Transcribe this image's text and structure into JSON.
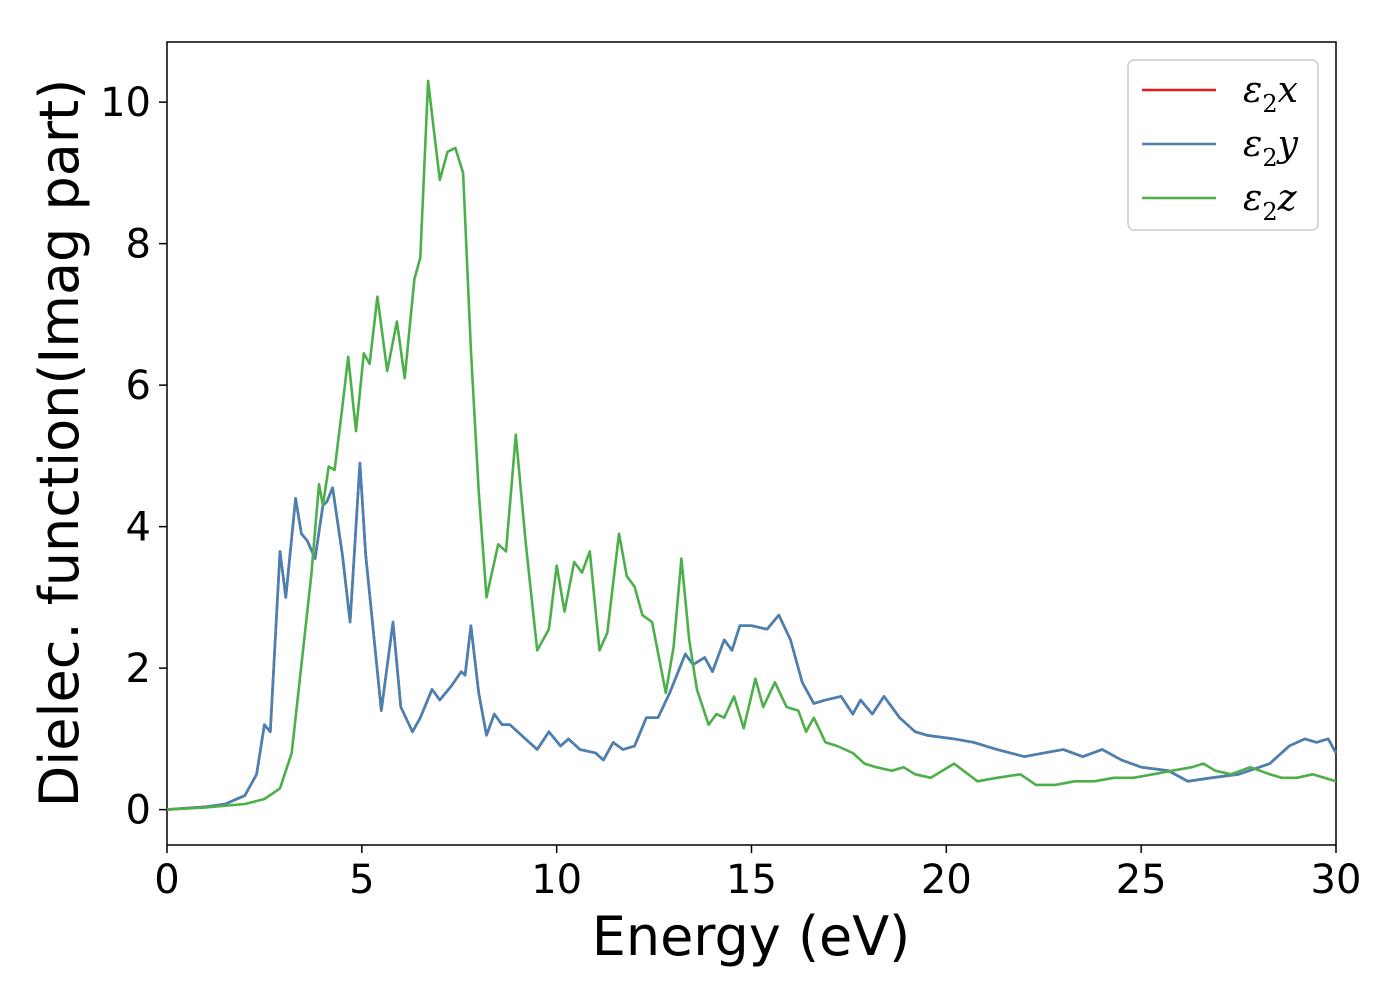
{
  "chart_data": {
    "type": "line",
    "title": "",
    "xlabel": "Energy (eV)",
    "ylabel": "Dielec. function(Imag part)",
    "xlim": [
      0,
      30
    ],
    "ylim": [
      -0.5,
      10.85
    ],
    "xticks": [
      0,
      5,
      10,
      15,
      20,
      25,
      30
    ],
    "yticks": [
      0,
      2,
      4,
      6,
      8,
      10
    ],
    "grid": false,
    "legend_position": "top-right",
    "series": [
      {
        "name": "ε₂x",
        "legend_main": "ε",
        "legend_sub": "2",
        "legend_suffix": "x",
        "color": "#e41a1c",
        "points": [
          [
            0,
            0
          ],
          [
            1,
            0.04
          ],
          [
            1.5,
            0.08
          ],
          [
            2,
            0.2
          ],
          [
            2.3,
            0.5
          ],
          [
            2.5,
            1.2
          ],
          [
            2.65,
            1.1
          ],
          [
            2.9,
            3.65
          ],
          [
            3.05,
            3.0
          ],
          [
            3.3,
            4.4
          ],
          [
            3.45,
            3.9
          ],
          [
            3.6,
            3.8
          ],
          [
            3.8,
            3.55
          ],
          [
            4.0,
            4.3
          ],
          [
            4.1,
            4.35
          ],
          [
            4.25,
            4.55
          ],
          [
            4.5,
            3.6
          ],
          [
            4.7,
            2.65
          ],
          [
            4.95,
            4.9
          ],
          [
            5.1,
            3.6
          ],
          [
            5.5,
            1.4
          ],
          [
            5.8,
            2.65
          ],
          [
            6.0,
            1.45
          ],
          [
            6.3,
            1.1
          ],
          [
            6.5,
            1.3
          ],
          [
            6.8,
            1.7
          ],
          [
            7.0,
            1.55
          ],
          [
            7.3,
            1.75
          ],
          [
            7.55,
            1.95
          ],
          [
            7.65,
            1.9
          ],
          [
            7.8,
            2.6
          ],
          [
            8.0,
            1.65
          ],
          [
            8.2,
            1.05
          ],
          [
            8.4,
            1.35
          ],
          [
            8.6,
            1.2
          ],
          [
            8.8,
            1.2
          ],
          [
            9.2,
            1.0
          ],
          [
            9.5,
            0.85
          ],
          [
            9.8,
            1.1
          ],
          [
            10.1,
            0.9
          ],
          [
            10.3,
            1.0
          ],
          [
            10.6,
            0.85
          ],
          [
            11.0,
            0.8
          ],
          [
            11.2,
            0.7
          ],
          [
            11.45,
            0.95
          ],
          [
            11.7,
            0.85
          ],
          [
            12.0,
            0.9
          ],
          [
            12.3,
            1.3
          ],
          [
            12.6,
            1.3
          ],
          [
            12.9,
            1.65
          ],
          [
            13.3,
            2.2
          ],
          [
            13.5,
            2.05
          ],
          [
            13.8,
            2.15
          ],
          [
            14.0,
            1.95
          ],
          [
            14.3,
            2.4
          ],
          [
            14.5,
            2.25
          ],
          [
            14.7,
            2.6
          ],
          [
            15.0,
            2.6
          ],
          [
            15.4,
            2.55
          ],
          [
            15.7,
            2.75
          ],
          [
            16.0,
            2.4
          ],
          [
            16.3,
            1.8
          ],
          [
            16.6,
            1.5
          ],
          [
            16.9,
            1.55
          ],
          [
            17.3,
            1.6
          ],
          [
            17.6,
            1.35
          ],
          [
            17.8,
            1.55
          ],
          [
            18.1,
            1.35
          ],
          [
            18.4,
            1.6
          ],
          [
            18.8,
            1.3
          ],
          [
            19.2,
            1.1
          ],
          [
            19.5,
            1.05
          ],
          [
            20.2,
            1.0
          ],
          [
            20.7,
            0.95
          ],
          [
            21.3,
            0.85
          ],
          [
            22.0,
            0.75
          ],
          [
            22.5,
            0.8
          ],
          [
            23.0,
            0.85
          ],
          [
            23.5,
            0.75
          ],
          [
            24.0,
            0.85
          ],
          [
            24.5,
            0.7
          ],
          [
            25.0,
            0.6
          ],
          [
            25.7,
            0.55
          ],
          [
            26.2,
            0.4
          ],
          [
            26.8,
            0.45
          ],
          [
            27.5,
            0.5
          ],
          [
            28.3,
            0.65
          ],
          [
            28.8,
            0.9
          ],
          [
            29.2,
            1.0
          ],
          [
            29.5,
            0.95
          ],
          [
            29.8,
            1.0
          ],
          [
            30.0,
            0.8
          ]
        ]
      },
      {
        "name": "ε₂y",
        "legend_main": "ε",
        "legend_sub": "2",
        "legend_suffix": "y",
        "color": "#4682b4",
        "points": [
          [
            0,
            0
          ],
          [
            1,
            0.04
          ],
          [
            1.5,
            0.08
          ],
          [
            2,
            0.2
          ],
          [
            2.3,
            0.5
          ],
          [
            2.5,
            1.2
          ],
          [
            2.65,
            1.1
          ],
          [
            2.9,
            3.65
          ],
          [
            3.05,
            3.0
          ],
          [
            3.3,
            4.4
          ],
          [
            3.45,
            3.9
          ],
          [
            3.6,
            3.8
          ],
          [
            3.8,
            3.55
          ],
          [
            4.0,
            4.3
          ],
          [
            4.1,
            4.35
          ],
          [
            4.25,
            4.55
          ],
          [
            4.5,
            3.6
          ],
          [
            4.7,
            2.65
          ],
          [
            4.95,
            4.9
          ],
          [
            5.1,
            3.6
          ],
          [
            5.5,
            1.4
          ],
          [
            5.8,
            2.65
          ],
          [
            6.0,
            1.45
          ],
          [
            6.3,
            1.1
          ],
          [
            6.5,
            1.3
          ],
          [
            6.8,
            1.7
          ],
          [
            7.0,
            1.55
          ],
          [
            7.3,
            1.75
          ],
          [
            7.55,
            1.95
          ],
          [
            7.65,
            1.9
          ],
          [
            7.8,
            2.6
          ],
          [
            8.0,
            1.65
          ],
          [
            8.2,
            1.05
          ],
          [
            8.4,
            1.35
          ],
          [
            8.6,
            1.2
          ],
          [
            8.8,
            1.2
          ],
          [
            9.2,
            1.0
          ],
          [
            9.5,
            0.85
          ],
          [
            9.8,
            1.1
          ],
          [
            10.1,
            0.9
          ],
          [
            10.3,
            1.0
          ],
          [
            10.6,
            0.85
          ],
          [
            11.0,
            0.8
          ],
          [
            11.2,
            0.7
          ],
          [
            11.45,
            0.95
          ],
          [
            11.7,
            0.85
          ],
          [
            12.0,
            0.9
          ],
          [
            12.3,
            1.3
          ],
          [
            12.6,
            1.3
          ],
          [
            12.9,
            1.65
          ],
          [
            13.3,
            2.2
          ],
          [
            13.5,
            2.05
          ],
          [
            13.8,
            2.15
          ],
          [
            14.0,
            1.95
          ],
          [
            14.3,
            2.4
          ],
          [
            14.5,
            2.25
          ],
          [
            14.7,
            2.6
          ],
          [
            15.0,
            2.6
          ],
          [
            15.4,
            2.55
          ],
          [
            15.7,
            2.75
          ],
          [
            16.0,
            2.4
          ],
          [
            16.3,
            1.8
          ],
          [
            16.6,
            1.5
          ],
          [
            16.9,
            1.55
          ],
          [
            17.3,
            1.6
          ],
          [
            17.6,
            1.35
          ],
          [
            17.8,
            1.55
          ],
          [
            18.1,
            1.35
          ],
          [
            18.4,
            1.6
          ],
          [
            18.8,
            1.3
          ],
          [
            19.2,
            1.1
          ],
          [
            19.5,
            1.05
          ],
          [
            20.2,
            1.0
          ],
          [
            20.7,
            0.95
          ],
          [
            21.3,
            0.85
          ],
          [
            22.0,
            0.75
          ],
          [
            22.5,
            0.8
          ],
          [
            23.0,
            0.85
          ],
          [
            23.5,
            0.75
          ],
          [
            24.0,
            0.85
          ],
          [
            24.5,
            0.7
          ],
          [
            25.0,
            0.6
          ],
          [
            25.7,
            0.55
          ],
          [
            26.2,
            0.4
          ],
          [
            26.8,
            0.45
          ],
          [
            27.5,
            0.5
          ],
          [
            28.3,
            0.65
          ],
          [
            28.8,
            0.9
          ],
          [
            29.2,
            1.0
          ],
          [
            29.5,
            0.95
          ],
          [
            29.8,
            1.0
          ],
          [
            30.0,
            0.8
          ]
        ]
      },
      {
        "name": "ε₂z",
        "legend_main": "ε",
        "legend_sub": "2",
        "legend_suffix": "z",
        "color": "#4daf4a",
        "points": [
          [
            0,
            0
          ],
          [
            1,
            0.03
          ],
          [
            2,
            0.08
          ],
          [
            2.5,
            0.15
          ],
          [
            2.9,
            0.3
          ],
          [
            3.2,
            0.8
          ],
          [
            3.5,
            2.3
          ],
          [
            3.7,
            3.3
          ],
          [
            3.9,
            4.6
          ],
          [
            4.0,
            4.3
          ],
          [
            4.15,
            4.85
          ],
          [
            4.3,
            4.8
          ],
          [
            4.5,
            5.7
          ],
          [
            4.65,
            6.4
          ],
          [
            4.85,
            5.35
          ],
          [
            5.05,
            6.45
          ],
          [
            5.2,
            6.3
          ],
          [
            5.4,
            7.25
          ],
          [
            5.65,
            6.2
          ],
          [
            5.9,
            6.9
          ],
          [
            6.1,
            6.1
          ],
          [
            6.35,
            7.5
          ],
          [
            6.5,
            7.8
          ],
          [
            6.7,
            10.3
          ],
          [
            6.85,
            9.6
          ],
          [
            7.0,
            8.9
          ],
          [
            7.2,
            9.3
          ],
          [
            7.4,
            9.35
          ],
          [
            7.6,
            9.0
          ],
          [
            7.8,
            6.5
          ],
          [
            8.0,
            4.5
          ],
          [
            8.2,
            3.0
          ],
          [
            8.5,
            3.75
          ],
          [
            8.7,
            3.65
          ],
          [
            8.95,
            5.3
          ],
          [
            9.2,
            3.8
          ],
          [
            9.5,
            2.25
          ],
          [
            9.8,
            2.55
          ],
          [
            10.0,
            3.45
          ],
          [
            10.2,
            2.8
          ],
          [
            10.45,
            3.5
          ],
          [
            10.65,
            3.35
          ],
          [
            10.85,
            3.65
          ],
          [
            11.1,
            2.25
          ],
          [
            11.3,
            2.5
          ],
          [
            11.6,
            3.9
          ],
          [
            11.8,
            3.3
          ],
          [
            12.0,
            3.15
          ],
          [
            12.2,
            2.75
          ],
          [
            12.45,
            2.65
          ],
          [
            12.8,
            1.65
          ],
          [
            13.0,
            2.3
          ],
          [
            13.2,
            3.55
          ],
          [
            13.4,
            2.4
          ],
          [
            13.6,
            1.7
          ],
          [
            13.9,
            1.2
          ],
          [
            14.1,
            1.35
          ],
          [
            14.3,
            1.3
          ],
          [
            14.55,
            1.6
          ],
          [
            14.8,
            1.15
          ],
          [
            15.1,
            1.85
          ],
          [
            15.3,
            1.45
          ],
          [
            15.6,
            1.8
          ],
          [
            15.9,
            1.45
          ],
          [
            16.2,
            1.4
          ],
          [
            16.4,
            1.1
          ],
          [
            16.6,
            1.3
          ],
          [
            16.9,
            0.95
          ],
          [
            17.2,
            0.9
          ],
          [
            17.6,
            0.8
          ],
          [
            17.9,
            0.65
          ],
          [
            18.2,
            0.6
          ],
          [
            18.6,
            0.55
          ],
          [
            18.9,
            0.6
          ],
          [
            19.2,
            0.5
          ],
          [
            19.6,
            0.45
          ],
          [
            20.2,
            0.65
          ],
          [
            20.8,
            0.4
          ],
          [
            21.3,
            0.45
          ],
          [
            21.9,
            0.5
          ],
          [
            22.3,
            0.35
          ],
          [
            22.8,
            0.35
          ],
          [
            23.3,
            0.4
          ],
          [
            23.8,
            0.4
          ],
          [
            24.3,
            0.45
          ],
          [
            24.8,
            0.45
          ],
          [
            25.3,
            0.5
          ],
          [
            25.8,
            0.55
          ],
          [
            26.3,
            0.6
          ],
          [
            26.6,
            0.65
          ],
          [
            26.9,
            0.55
          ],
          [
            27.3,
            0.5
          ],
          [
            27.8,
            0.6
          ],
          [
            28.3,
            0.5
          ],
          [
            28.6,
            0.45
          ],
          [
            29.0,
            0.45
          ],
          [
            29.4,
            0.5
          ],
          [
            29.7,
            0.45
          ],
          [
            30.0,
            0.4
          ]
        ]
      }
    ]
  }
}
